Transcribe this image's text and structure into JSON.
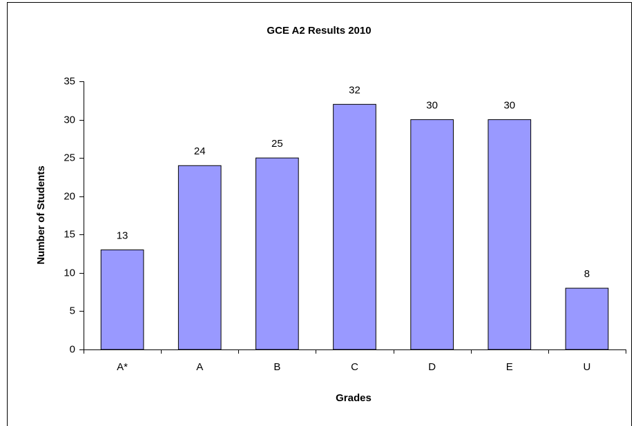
{
  "chart_data": {
    "type": "bar",
    "title": "GCE A2 Results 2010",
    "x_label": "Grades",
    "y_label": "Number of Students",
    "categories": [
      "A*",
      "A",
      "B",
      "C",
      "D",
      "E",
      "U"
    ],
    "values": [
      13,
      24,
      25,
      32,
      30,
      30,
      8
    ],
    "color": "#9999ff",
    "ylim": [
      0,
      35
    ],
    "yticks": [
      0,
      5,
      10,
      15,
      20,
      25,
      30,
      35
    ],
    "grid": false
  }
}
